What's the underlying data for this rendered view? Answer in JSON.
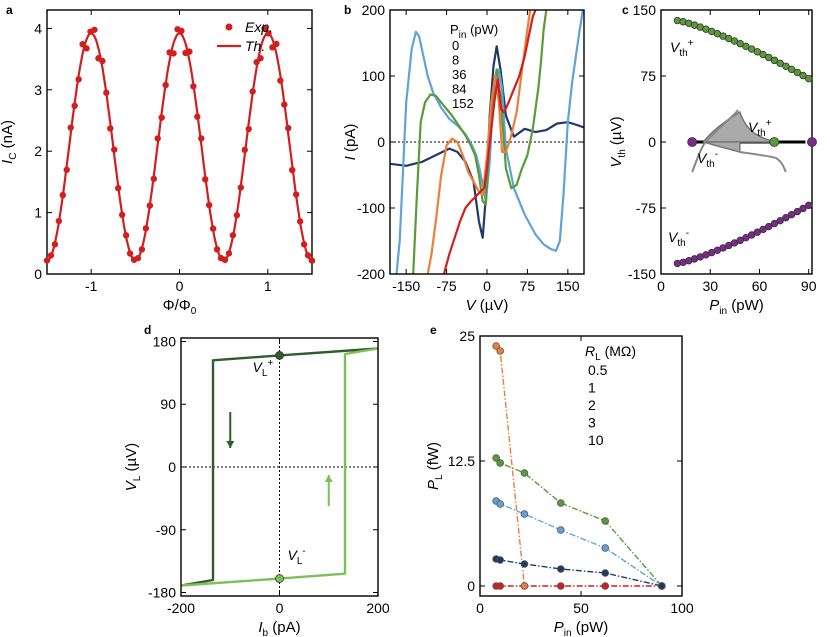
{
  "colors": {
    "red": "#d11f1f",
    "dgreen": "#2e5e2a",
    "lgreen": "#7fbf5a",
    "green": "#5b9a3a",
    "blue": "#5fa3d9",
    "navy": "#1f3a66",
    "orange": "#ef7d3a",
    "purple": "#7b2a8a",
    "gray": "#888888"
  },
  "chart_data": [
    {
      "panel": "a",
      "type": "line",
      "xlabel": "Φ/Φ",
      "xlabel_sub": "0",
      "ylabel": "I",
      "ylabel_sub": "C",
      "ylabel_unit": " (nA)",
      "xlim": [
        -1.5,
        1.5
      ],
      "ylim": [
        0,
        4.3
      ],
      "xticks": [
        {
          "v": -1,
          "t": "-1"
        },
        {
          "v": 0,
          "t": "0"
        },
        {
          "v": 1,
          "t": "1"
        }
      ],
      "yticks": [
        {
          "v": 0,
          "t": "0"
        },
        {
          "v": 1,
          "t": "1"
        },
        {
          "v": 2,
          "t": "2"
        },
        {
          "v": 3,
          "t": "3"
        },
        {
          "v": 4,
          "t": "4"
        }
      ],
      "legend": [
        {
          "label": "Exp.",
          "kind": "marker"
        },
        {
          "label": "Th.",
          "kind": "line"
        }
      ],
      "series": [
        {
          "name": "Exp.",
          "model": "cos",
          "amp": 3.92,
          "min": 0.22,
          "period": 1,
          "x_from": -1.5,
          "x_to": 1.5,
          "n_points": 68
        },
        {
          "name": "Th.",
          "model": "cos",
          "amp": 3.92,
          "min": 0.22,
          "period": 1,
          "x_from": -1.5,
          "x_to": 1.5
        }
      ]
    },
    {
      "panel": "b",
      "type": "line",
      "xlabel": "V",
      "xlabel_unit": " (µV)",
      "ylabel": "I",
      "ylabel_unit": " (pA)",
      "xlim": [
        -180,
        180
      ],
      "ylim": [
        -200,
        200
      ],
      "xticks": [
        {
          "v": -150,
          "t": "-150"
        },
        {
          "v": -75,
          "t": "-75"
        },
        {
          "v": 0,
          "t": "0"
        },
        {
          "v": 75,
          "t": "75"
        },
        {
          "v": 150,
          "t": "150"
        }
      ],
      "yticks": [
        {
          "v": -200,
          "t": "-200"
        },
        {
          "v": -100,
          "t": "-100"
        },
        {
          "v": 0,
          "t": "0"
        },
        {
          "v": 100,
          "t": "100"
        },
        {
          "v": 200,
          "t": "200"
        }
      ],
      "legend_title": "P",
      "legend_title_sub": "in",
      "legend_title_unit": " (pW)",
      "series": [
        {
          "name": "0",
          "color": "navy",
          "x": [
            -180,
            -150,
            -120,
            -90,
            -70,
            -55,
            -40,
            -25,
            -15,
            -8,
            0,
            5,
            12,
            18,
            25,
            35,
            50,
            70,
            90,
            110,
            130,
            150,
            170,
            180
          ],
          "y": [
            -33,
            -36,
            -30,
            -18,
            -10,
            -15,
            -30,
            -60,
            -120,
            -145,
            -60,
            40,
            115,
            145,
            110,
            40,
            8,
            20,
            15,
            18,
            28,
            30,
            25,
            22
          ]
        },
        {
          "name": "8",
          "color": "blue",
          "x": [
            -168,
            -162,
            -150,
            -140,
            -132,
            -126,
            -118,
            -110,
            -100,
            -85,
            -70,
            -55,
            -40,
            -28,
            -20,
            -14,
            -8,
            -2,
            5,
            10,
            16,
            22,
            28,
            35,
            50,
            70,
            90,
            105,
            118,
            128,
            135,
            142,
            150,
            158,
            165,
            172,
            178
          ],
          "y": [
            -200,
            -150,
            60,
            140,
            167,
            160,
            130,
            100,
            75,
            52,
            35,
            25,
            12,
            -5,
            -20,
            -40,
            -65,
            -90,
            -30,
            45,
            95,
            110,
            80,
            -10,
            -70,
            -110,
            -140,
            -155,
            -162,
            -165,
            -150,
            -80,
            30,
            90,
            130,
            170,
            200
          ]
        },
        {
          "name": "36",
          "color": "green",
          "x": [
            -137,
            -130,
            -123,
            -115,
            -105,
            -95,
            -85,
            -75,
            -65,
            -50,
            -40,
            -30,
            -22,
            -15,
            -8,
            -2,
            5,
            12,
            18,
            25,
            35,
            45,
            55,
            65,
            75,
            85,
            95,
            100,
            105,
            110
          ],
          "y": [
            -200,
            -80,
            30,
            60,
            72,
            70,
            60,
            50,
            40,
            22,
            10,
            -5,
            -20,
            -50,
            -90,
            -95,
            20,
            80,
            110,
            70,
            -40,
            -70,
            -65,
            -40,
            -20,
            20,
            80,
            120,
            170,
            200
          ]
        },
        {
          "name": "84",
          "color": "orange",
          "x": [
            -110,
            -103,
            -95,
            -85,
            -75,
            -65,
            -55,
            -45,
            -35,
            -25,
            -15,
            -8,
            0,
            8,
            15,
            22,
            28,
            35,
            45,
            55,
            62,
            70,
            75,
            80
          ],
          "y": [
            -200,
            -170,
            -120,
            -50,
            -5,
            5,
            0,
            -20,
            -45,
            -60,
            -75,
            -80,
            -20,
            60,
            100,
            60,
            -15,
            -15,
            10,
            45,
            90,
            140,
            170,
            200
          ]
        },
        {
          "name": "152",
          "color": "red",
          "x": [
            -80,
            -70,
            -60,
            -50,
            -40,
            -30,
            -20,
            -12,
            -5,
            0,
            8,
            15,
            20,
            26,
            32,
            40,
            50,
            60,
            70,
            80,
            85,
            90
          ],
          "y": [
            -200,
            -170,
            -145,
            -120,
            -100,
            -90,
            -82,
            -75,
            -70,
            -40,
            20,
            70,
            95,
            50,
            45,
            60,
            80,
            100,
            130,
            170,
            190,
            200
          ]
        }
      ]
    },
    {
      "panel": "c",
      "type": "scatter",
      "xlabel": "P",
      "xlabel_sub": "in",
      "xlabel_unit": " (pW)",
      "ylabel": "V",
      "ylabel_sub": "th",
      "ylabel_unit": " (µV)",
      "xlim": [
        0,
        92
      ],
      "ylim": [
        -150,
        150
      ],
      "xticks": [
        {
          "v": 0,
          "t": "0"
        },
        {
          "v": 30,
          "t": "30"
        },
        {
          "v": 60,
          "t": "60"
        },
        {
          "v": 90,
          "t": "90"
        }
      ],
      "yticks": [
        {
          "v": -150,
          "t": "-150"
        },
        {
          "v": -75,
          "t": "-75"
        },
        {
          "v": 0,
          "t": "0"
        },
        {
          "v": 75,
          "t": "75"
        },
        {
          "v": 150,
          "t": "150"
        }
      ],
      "labels": [
        {
          "t": "V",
          "sub": "th",
          "sup": "+",
          "color": "green"
        },
        {
          "t": "V",
          "sub": "th",
          "sup": "-",
          "color": "purple"
        },
        {
          "t": "V",
          "sub": "th",
          "sup": "+",
          "color": "green"
        },
        {
          "t": "V",
          "sub": "th",
          "sup": "-",
          "color": "purple"
        }
      ],
      "series": [
        {
          "name": "V_th+",
          "color": "green",
          "x_from": 10,
          "x_to": 90,
          "n": 24,
          "y_from": 138,
          "y_to": 72
        },
        {
          "name": "V_th-",
          "color": "purple",
          "x_from": 10,
          "x_to": 90,
          "n": 24,
          "y_from": -138,
          "y_to": -72
        }
      ]
    },
    {
      "panel": "d",
      "type": "line",
      "xlabel": "I",
      "xlabel_sub": "b",
      "xlabel_unit": " (pA)",
      "ylabel": "V",
      "ylabel_sub": "L",
      "ylabel_unit": " (µV)",
      "xlim": [
        -200,
        200
      ],
      "ylim": [
        -185,
        185
      ],
      "xticks": [
        {
          "v": -200,
          "t": "-200"
        },
        {
          "v": 0,
          "t": "0"
        },
        {
          "v": 200,
          "t": "200"
        }
      ],
      "yticks": [
        {
          "v": 180,
          "t": "180"
        },
        {
          "v": 90,
          "t": "90"
        },
        {
          "v": 0,
          "t": "0"
        },
        {
          "v": -90,
          "t": "-90"
        },
        {
          "v": -180,
          "t": "-180"
        }
      ],
      "labels": [
        {
          "t": "V",
          "sub": "L",
          "sup": "+",
          "color": "dgreen"
        },
        {
          "t": "V",
          "sub": "L",
          "sup": "-",
          "color": "lgreen"
        }
      ],
      "series": [
        {
          "name": "down sweep",
          "color": "dgreen",
          "x": [
            200,
            0,
            -135,
            -135,
            -200
          ],
          "y": [
            170,
            160,
            153,
            -162,
            -170
          ]
        },
        {
          "name": "up sweep",
          "color": "lgreen",
          "x": [
            -200,
            0,
            133,
            133,
            200
          ],
          "y": [
            -170,
            -160,
            -153,
            162,
            170
          ]
        }
      ],
      "points": [
        {
          "x": 0,
          "y": 160,
          "color": "dgreen"
        },
        {
          "x": 0,
          "y": -160,
          "color": "lgreen"
        }
      ]
    },
    {
      "panel": "e",
      "type": "line",
      "xlabel": "P",
      "xlabel_sub": "in",
      "xlabel_unit": " (pW)",
      "ylabel": "P",
      "ylabel_sub": "L",
      "ylabel_unit": " (fW)",
      "xlim": [
        0,
        100
      ],
      "ylim": [
        -1,
        25
      ],
      "xticks": [
        {
          "v": 0,
          "t": "0"
        },
        {
          "v": 50,
          "t": "50"
        },
        {
          "v": 100,
          "t": "100"
        }
      ],
      "yticks": [
        {
          "v": 0,
          "t": "0"
        },
        {
          "v": 12.5,
          "t": "12.5"
        },
        {
          "v": 25,
          "t": "25"
        }
      ],
      "legend_title": "R",
      "legend_title_sub": "L",
      "legend_title_unit": " (MΩ)",
      "series": [
        {
          "name": "0.5",
          "color": "red",
          "x": [
            8,
            10,
            22,
            40,
            62,
            90
          ],
          "y": [
            0,
            0,
            0,
            0,
            0,
            0
          ]
        },
        {
          "name": "1",
          "color": "orange",
          "x": [
            8,
            10,
            22
          ],
          "y": [
            24,
            23.5,
            0
          ]
        },
        {
          "name": "2",
          "color": "green",
          "x": [
            8,
            10,
            22,
            40,
            62,
            90
          ],
          "y": [
            12.8,
            12.3,
            11.3,
            8.3,
            6.5,
            0
          ]
        },
        {
          "name": "3",
          "color": "blue",
          "x": [
            8,
            10,
            22,
            40,
            62,
            90
          ],
          "y": [
            8.5,
            8.2,
            7.2,
            5.6,
            3.8,
            0
          ]
        },
        {
          "name": "10",
          "color": "navy",
          "x": [
            8,
            10,
            22,
            40,
            62,
            90
          ],
          "y": [
            2.7,
            2.6,
            2.2,
            1.7,
            1.3,
            0
          ]
        }
      ]
    }
  ]
}
